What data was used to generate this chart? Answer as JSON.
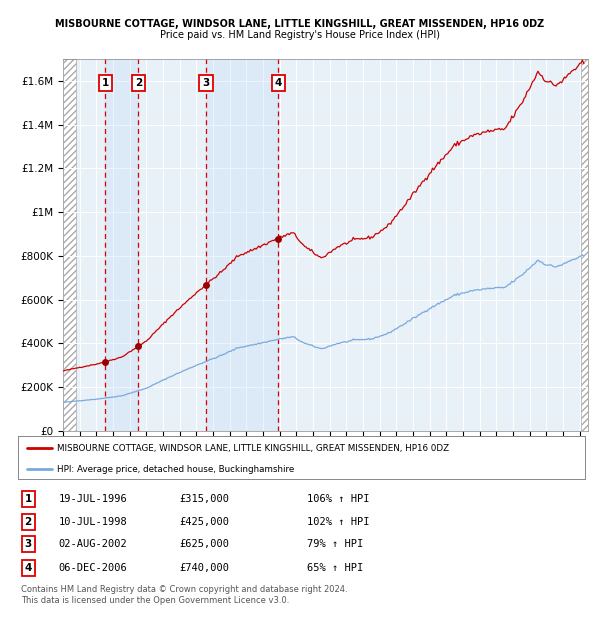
{
  "title1": "MISBOURNE COTTAGE, WINDSOR LANE, LITTLE KINGSHILL, GREAT MISSENDEN, HP16 0DZ",
  "title2": "Price paid vs. HM Land Registry's House Price Index (HPI)",
  "xlim_start": 1994.0,
  "xlim_end": 2025.5,
  "ylim_min": 0,
  "ylim_max": 1700000,
  "yticks": [
    0,
    200000,
    400000,
    600000,
    800000,
    1000000,
    1200000,
    1400000,
    1600000
  ],
  "ytick_labels": [
    "£0",
    "£200K",
    "£400K",
    "£600K",
    "£800K",
    "£1M",
    "£1.2M",
    "£1.4M",
    "£1.6M"
  ],
  "sales": [
    {
      "id": 1,
      "date_num": 1996.54,
      "price": 315000,
      "label": "1"
    },
    {
      "id": 2,
      "date_num": 1998.52,
      "price": 425000,
      "label": "2"
    },
    {
      "id": 3,
      "date_num": 2002.58,
      "price": 625000,
      "label": "3"
    },
    {
      "id": 4,
      "date_num": 2006.92,
      "price": 740000,
      "label": "4"
    }
  ],
  "sale_dates_str": [
    "19-JUL-1996",
    "10-JUL-1998",
    "02-AUG-2002",
    "06-DEC-2006"
  ],
  "sale_prices_str": [
    "£315,000",
    "£425,000",
    "£625,000",
    "£740,000"
  ],
  "sale_pcts": [
    "106% ↑ HPI",
    "102% ↑ HPI",
    "79% ↑ HPI",
    "65% ↑ HPI"
  ],
  "legend_line1": "MISBOURNE COTTAGE, WINDSOR LANE, LITTLE KINGSHILL, GREAT MISSENDEN, HP16 0DZ",
  "legend_line2": "HPI: Average price, detached house, Buckinghamshire",
  "footer1": "Contains HM Land Registry data © Crown copyright and database right 2024.",
  "footer2": "This data is licensed under the Open Government Licence v3.0.",
  "line_color_red": "#cc0000",
  "line_color_blue": "#7aaadd",
  "bg_color": "#e8f0f8",
  "vline_color": "#dd0000",
  "hpi_anchors": {
    "1994.0": 130000,
    "1995.0": 138000,
    "1996.0": 145000,
    "1997.5": 160000,
    "1999.0": 195000,
    "2000.5": 250000,
    "2002.0": 300000,
    "2003.5": 345000,
    "2004.5": 380000,
    "2005.5": 395000,
    "2007.0": 420000,
    "2007.8": 430000,
    "2008.5": 400000,
    "2009.5": 375000,
    "2010.5": 400000,
    "2011.5": 415000,
    "2012.5": 420000,
    "2013.5": 445000,
    "2014.5": 490000,
    "2016.0": 560000,
    "2017.5": 620000,
    "2018.5": 640000,
    "2019.5": 650000,
    "2020.5": 655000,
    "2021.5": 710000,
    "2022.5": 780000,
    "2023.0": 760000,
    "2023.5": 750000,
    "2024.0": 760000,
    "2024.5": 780000,
    "2025.25": 800000
  }
}
